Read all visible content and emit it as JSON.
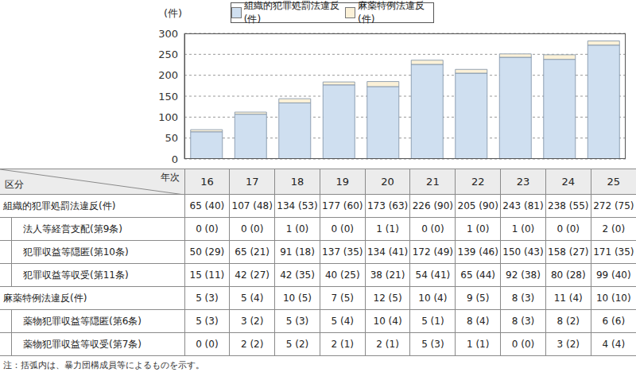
{
  "chart_data": {
    "type": "bar",
    "stacked": true,
    "grid": true,
    "legend": "top",
    "y_label": "(件)",
    "categories": [
      "16",
      "17",
      "18",
      "19",
      "20",
      "21",
      "22",
      "23",
      "24",
      "25"
    ],
    "series": [
      {
        "name": "組織的犯罪処罰法違反(件)",
        "color": "#cfdff0",
        "values": [
          65,
          107,
          134,
          177,
          173,
          226,
          205,
          243,
          238,
          272
        ]
      },
      {
        "name": "麻薬特例法違反(件)",
        "color": "#fbf1d8",
        "values": [
          5,
          5,
          10,
          7,
          12,
          10,
          9,
          8,
          11,
          10
        ]
      }
    ],
    "ylim": [
      0,
      300
    ],
    "yticks": [
      0,
      50,
      100,
      150,
      200,
      250,
      300
    ],
    "tick_labels": "y"
  },
  "table": {
    "corner_left": "区分",
    "corner_right": "年次",
    "rows": [
      {
        "label": "組織的犯罪処罰法違反(件)",
        "sub": false,
        "cells": [
          "65 (40)",
          "107 (48)",
          "134 (53)",
          "177 (60)",
          "173 (63)",
          "226 (90)",
          "205 (90)",
          "243 (81)",
          "238 (55)",
          "272 (75)"
        ]
      },
      {
        "label": "法人等経営支配(第9条)",
        "sub": true,
        "cells": [
          "0 (0)",
          "0 (0)",
          "1 (0)",
          "0 (0)",
          "1 (1)",
          "0 (0)",
          "1 (0)",
          "1 (0)",
          "0 (0)",
          "2 (0)"
        ]
      },
      {
        "label": "犯罪収益等隠匿(第10条)",
        "sub": true,
        "cells": [
          "50 (29)",
          "65 (21)",
          "91 (18)",
          "137 (35)",
          "134 (41)",
          "172 (49)",
          "139 (46)",
          "150 (43)",
          "158 (27)",
          "171 (35)"
        ]
      },
      {
        "label": "犯罪収益等収受(第11条)",
        "sub": true,
        "cells": [
          "15 (11)",
          "42 (27)",
          "42 (35)",
          "40 (25)",
          "38 (21)",
          "54 (41)",
          "65 (44)",
          "92 (38)",
          "80 (28)",
          "99 (40)"
        ]
      },
      {
        "label": "麻薬特例法違反(件)",
        "sub": false,
        "cells": [
          "5 (3)",
          "5 (4)",
          "10 (5)",
          "7 (5)",
          "12 (5)",
          "10 (4)",
          "9 (5)",
          "8 (3)",
          "11 (4)",
          "10 (10)"
        ]
      },
      {
        "label": "薬物犯罪収益等隠匿(第6条)",
        "sub": true,
        "cells": [
          "5 (3)",
          "3 (2)",
          "5 (3)",
          "5 (4)",
          "10 (4)",
          "5 (1)",
          "8 (4)",
          "8 (3)",
          "8 (2)",
          "6 (6)"
        ]
      },
      {
        "label": "薬物犯罪収益等収受(第7条)",
        "sub": true,
        "cells": [
          "0 (0)",
          "2 (2)",
          "5 (2)",
          "2 (1)",
          "2 (1)",
          "5 (3)",
          "1 (1)",
          "0 (0)",
          "3 (2)",
          "4 (4)"
        ]
      }
    ]
  },
  "note": "注：括弧内は、暴力団構成員等によるものを示す。"
}
